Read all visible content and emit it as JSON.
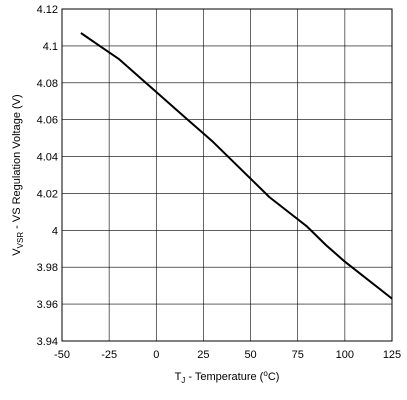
{
  "chart_data": {
    "type": "line",
    "title": "",
    "xlabel": {
      "main": "T",
      "sub": "J",
      "rest": " - Temperature (",
      "sup": "o",
      "unit": "C)"
    },
    "ylabel": {
      "main": "V",
      "sub": "VSR",
      "rest": " - VS Regulation Voltage (V)"
    },
    "xlim": [
      -50,
      125
    ],
    "ylim": [
      3.94,
      4.12
    ],
    "xticks": [
      -50,
      -25,
      0,
      25,
      50,
      75,
      100,
      125
    ],
    "xtick_labels": [
      "-50",
      "-25",
      "0",
      "25",
      "50",
      "75",
      "100",
      "125"
    ],
    "yticks": [
      3.94,
      3.96,
      3.98,
      4.0,
      4.02,
      4.04,
      4.06,
      4.08,
      4.1,
      4.12
    ],
    "ytick_labels": [
      "3.94",
      "3.96",
      "3.98",
      "4",
      "4.02",
      "4.04",
      "4.06",
      "4.08",
      "4.1",
      "4.12"
    ],
    "grid": true,
    "series": [
      {
        "color": "#000000",
        "x": [
          -40,
          -30,
          -20,
          -10,
          0,
          10,
          20,
          30,
          40,
          50,
          60,
          70,
          80,
          90,
          100,
          110,
          125
        ],
        "y": [
          4.107,
          4.1,
          4.093,
          4.084,
          4.075,
          4.066,
          4.057,
          4.048,
          4.038,
          4.028,
          4.018,
          4.01,
          4.002,
          3.992,
          3.983,
          3.975,
          3.963
        ]
      }
    ]
  }
}
